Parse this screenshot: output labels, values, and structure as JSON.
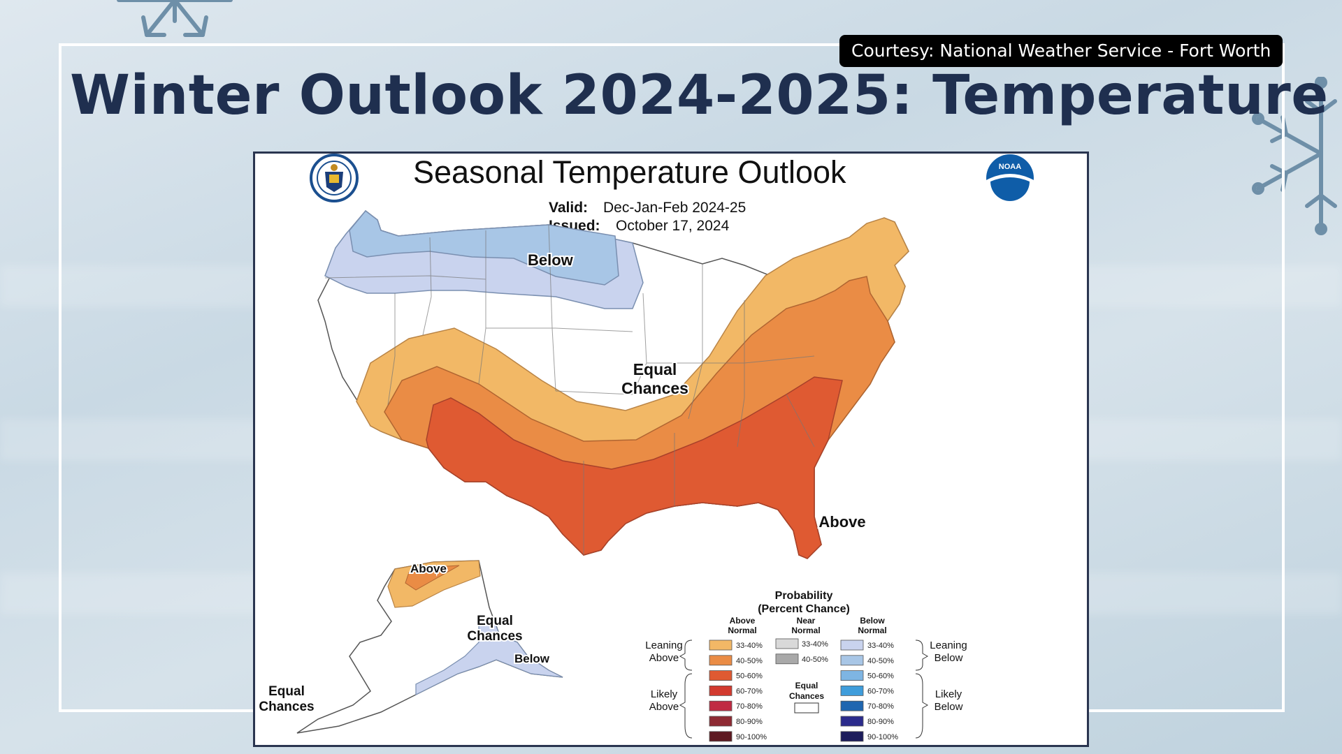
{
  "slide": {
    "title": "Winter Outlook 2024-2025: Temperature",
    "courtesy": "Courtesy: National Weather Service - Fort Worth"
  },
  "map": {
    "title": "Seasonal Temperature Outlook",
    "valid_label": "Valid:",
    "valid_value": "Dec-Jan-Feb 2024-25",
    "issued_label": "Issued:",
    "issued_value": "October 17, 2024",
    "region_labels": {
      "below": "Below",
      "equal_1": "Equal",
      "equal_2": "Chances",
      "above": "Above",
      "ak_above": "Above",
      "ak_equal_1": "Equal",
      "ak_equal_2": "Chances",
      "ak_below": "Below",
      "sw_equal_1": "Equal",
      "sw_equal_2": "Chances"
    },
    "colors": {
      "above_33_40": "#f2b866",
      "above_40_50": "#ea8c45",
      "above_50_60": "#df5a32",
      "below_33_40": "#c9d3ee",
      "below_40_50": "#a8c6e6"
    }
  },
  "legend": {
    "title_1": "Probability",
    "title_2": "(Percent Chance)",
    "above_header_1": "Above",
    "above_header_2": "Normal",
    "near_header_1": "Near",
    "near_header_2": "Normal",
    "below_header_1": "Below",
    "below_header_2": "Normal",
    "leaning_above_1": "Leaning",
    "leaning_above_2": "Above",
    "likely_above_1": "Likely",
    "likely_above_2": "Above",
    "leaning_below_1": "Leaning",
    "leaning_below_2": "Below",
    "likely_below_1": "Likely",
    "likely_below_2": "Below",
    "equal_1": "Equal",
    "equal_2": "Chances",
    "above_rows": [
      {
        "label": "33-40%",
        "color": "#f2b866"
      },
      {
        "label": "40-50%",
        "color": "#ea8c45"
      },
      {
        "label": "50-60%",
        "color": "#df5a32"
      },
      {
        "label": "60-70%",
        "color": "#d23a2f"
      },
      {
        "label": "70-80%",
        "color": "#c02b43"
      },
      {
        "label": "80-90%",
        "color": "#8e2a33"
      },
      {
        "label": "90-100%",
        "color": "#5e1a22"
      }
    ],
    "near_rows": [
      {
        "label": "33-40%",
        "color": "#d9d9d9"
      },
      {
        "label": "40-50%",
        "color": "#a9a9a9"
      }
    ],
    "below_rows": [
      {
        "label": "33-40%",
        "color": "#c9d3ee"
      },
      {
        "label": "40-50%",
        "color": "#a8c6e6"
      },
      {
        "label": "50-60%",
        "color": "#7eb5e3"
      },
      {
        "label": "60-70%",
        "color": "#3f9ddb"
      },
      {
        "label": "70-80%",
        "color": "#1f66b0"
      },
      {
        "label": "80-90%",
        "color": "#2b2b8c"
      },
      {
        "label": "90-100%",
        "color": "#1d1d5c"
      }
    ]
  }
}
